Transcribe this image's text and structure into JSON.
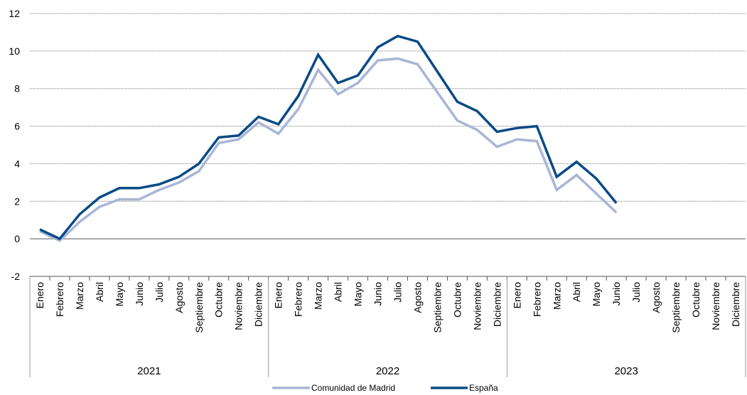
{
  "chart_data": {
    "type": "line",
    "months": [
      "Enero",
      "Febrero",
      "Marzo",
      "Abril",
      "Mayo",
      "Junio",
      "Julio",
      "Agosto",
      "Septiembre",
      "Octubre",
      "Noviembre",
      "Diciembre"
    ],
    "years": [
      "2021",
      "2022",
      "2023"
    ],
    "y_ticks": [
      "12",
      "10",
      "8",
      "6",
      "4",
      "2",
      "0",
      "-2"
    ],
    "ylim": [
      -2,
      12
    ],
    "grid": true,
    "series": [
      {
        "name": "Comunidad de Madrid",
        "color": "#a9b5d6",
        "values": [
          0.4,
          -0.1,
          0.9,
          1.7,
          2.1,
          2.1,
          2.6,
          3.0,
          3.6,
          5.1,
          5.3,
          6.2,
          5.6,
          6.9,
          9.0,
          7.7,
          8.3,
          9.5,
          9.6,
          9.3,
          7.8,
          6.3,
          5.8,
          4.9,
          5.3,
          5.2,
          2.6,
          3.4,
          2.4,
          1.4
        ]
      },
      {
        "name": "España",
        "color": "#0a4a86",
        "values": [
          0.5,
          0.0,
          1.3,
          2.2,
          2.7,
          2.7,
          2.9,
          3.3,
          4.0,
          5.4,
          5.5,
          6.5,
          6.1,
          7.6,
          9.8,
          8.3,
          8.7,
          10.2,
          10.8,
          10.5,
          8.9,
          7.3,
          6.8,
          5.7,
          5.9,
          6.0,
          3.3,
          4.1,
          3.2,
          1.9
        ]
      }
    ],
    "legend_position": "bottom"
  }
}
